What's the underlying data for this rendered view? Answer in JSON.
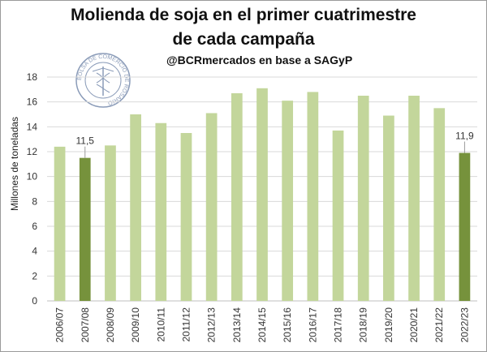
{
  "chart_data": {
    "type": "bar",
    "title_line1": "Molienda de soja en el primer cuatrimestre",
    "title_line2": "de cada campaña",
    "subtitle": "@BCRmercados en base a SAGyP",
    "ylabel": "Millones de toneladas",
    "xlabel": "",
    "ylim": [
      0,
      18
    ],
    "yticks": [
      0,
      2,
      4,
      6,
      8,
      10,
      12,
      14,
      16,
      18
    ],
    "grid": true,
    "categories": [
      "2006/07",
      "2007/08",
      "2008/09",
      "2009/10",
      "2010/11",
      "2011/12",
      "2012/13",
      "2013/14",
      "2014/15",
      "2015/16",
      "2016/17",
      "2017/18",
      "2018/19",
      "2019/20",
      "2020/21",
      "2021/22",
      "2022/23"
    ],
    "values": [
      12.4,
      11.5,
      12.5,
      15.0,
      14.3,
      13.5,
      15.1,
      16.7,
      17.1,
      16.1,
      16.8,
      13.7,
      16.5,
      14.9,
      16.5,
      15.5,
      11.9
    ],
    "highlighted": [
      "2007/08",
      "2022/23"
    ],
    "data_labels": [
      {
        "category": "2007/08",
        "text": "11,5"
      },
      {
        "category": "2022/23",
        "text": "11,9"
      }
    ],
    "colors": {
      "bar": "#c3d69b",
      "highlight": "#76923c",
      "grid": "#d9d9d9",
      "axis": "#bfbfbf"
    }
  },
  "logo": {
    "text": "BOLSA DE COMERCIO DE ROSARIO",
    "icon": "caduceus-seal-icon"
  }
}
